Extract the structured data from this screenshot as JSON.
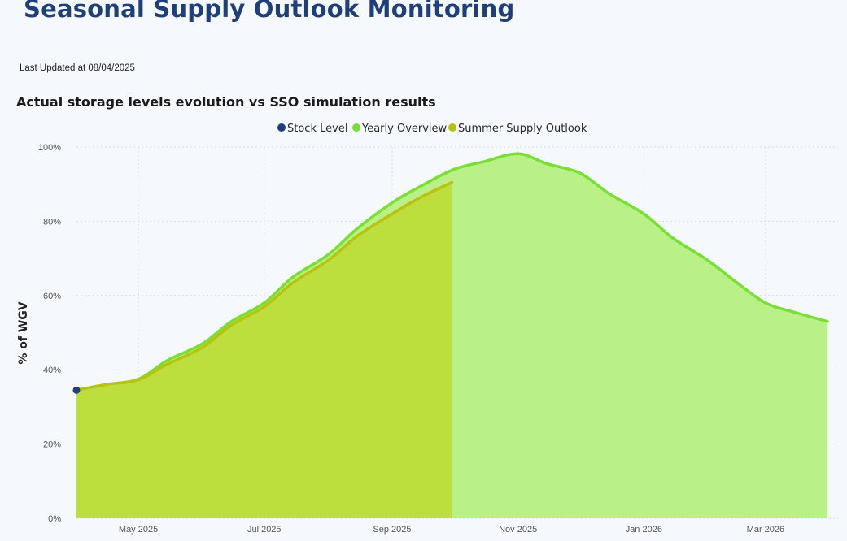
{
  "header": {
    "title": "Seasonal Supply Outlook Monitoring",
    "last_updated": "Last Updated at 08/04/2025"
  },
  "chart_title": "Actual storage levels evolution vs SSO simulation results",
  "colors": {
    "stock_level": "#1f3f82",
    "yearly_overview_line": "#78e032",
    "yearly_overview_fill": "#b9f088",
    "summer_outlook_line": "#b9c20f",
    "summer_outlook_fill": "#bddf3e",
    "grid": "#d6dbe2"
  },
  "chart_data": {
    "type": "area",
    "title": "Actual storage levels evolution vs SSO simulation results",
    "xlabel": "",
    "ylabel": "% of WGV",
    "ylim": [
      0,
      100
    ],
    "yticks": [
      0,
      20,
      40,
      60,
      80,
      100
    ],
    "ytick_labels": [
      "0%",
      "20%",
      "40%",
      "60%",
      "80%",
      "100%"
    ],
    "xlim": [
      "2025-04-01",
      "2026-03-31"
    ],
    "xticks": [
      "2025-05-01",
      "2025-07-01",
      "2025-09-01",
      "2025-11-01",
      "2026-01-01",
      "2026-03-01"
    ],
    "xtick_labels": [
      "May 2025",
      "Jul 2025",
      "Sep 2025",
      "Nov 2025",
      "Jan 2026",
      "Mar 2026"
    ],
    "grid": true,
    "legend_position": "top-center",
    "series": [
      {
        "name": "Stock Level",
        "kind": "point",
        "points": [
          [
            "2025-04-01",
            34.5
          ]
        ]
      },
      {
        "name": "Yearly Overview",
        "kind": "area",
        "points": [
          [
            "2025-04-01",
            34.5
          ],
          [
            "2025-04-15",
            36.0
          ],
          [
            "2025-05-01",
            37.5
          ],
          [
            "2025-05-15",
            42.5
          ],
          [
            "2025-06-01",
            47.0
          ],
          [
            "2025-06-15",
            53.0
          ],
          [
            "2025-07-01",
            58.0
          ],
          [
            "2025-07-15",
            65.0
          ],
          [
            "2025-08-01",
            71.0
          ],
          [
            "2025-08-15",
            78.0
          ],
          [
            "2025-09-01",
            85.0
          ],
          [
            "2025-09-15",
            89.5
          ],
          [
            "2025-10-01",
            94.0
          ],
          [
            "2025-10-15",
            96.0
          ],
          [
            "2025-11-01",
            98.2
          ],
          [
            "2025-11-15",
            95.5
          ],
          [
            "2025-12-01",
            93.0
          ],
          [
            "2025-12-15",
            87.5
          ],
          [
            "2026-01-01",
            82.0
          ],
          [
            "2026-01-15",
            75.5
          ],
          [
            "2026-02-01",
            69.5
          ],
          [
            "2026-02-15",
            63.5
          ],
          [
            "2026-03-01",
            58.0
          ],
          [
            "2026-03-15",
            55.5
          ],
          [
            "2026-03-31",
            53.0
          ]
        ]
      },
      {
        "name": "Summer Supply Outlook",
        "kind": "area",
        "points": [
          [
            "2025-04-01",
            34.5
          ],
          [
            "2025-04-15",
            36.0
          ],
          [
            "2025-05-01",
            37.3
          ],
          [
            "2025-05-15",
            41.5
          ],
          [
            "2025-06-01",
            46.0
          ],
          [
            "2025-06-15",
            52.0
          ],
          [
            "2025-07-01",
            57.0
          ],
          [
            "2025-07-15",
            63.5
          ],
          [
            "2025-08-01",
            69.5
          ],
          [
            "2025-08-15",
            76.0
          ],
          [
            "2025-09-01",
            82.0
          ],
          [
            "2025-09-15",
            86.5
          ],
          [
            "2025-09-30",
            90.5
          ]
        ]
      }
    ]
  }
}
